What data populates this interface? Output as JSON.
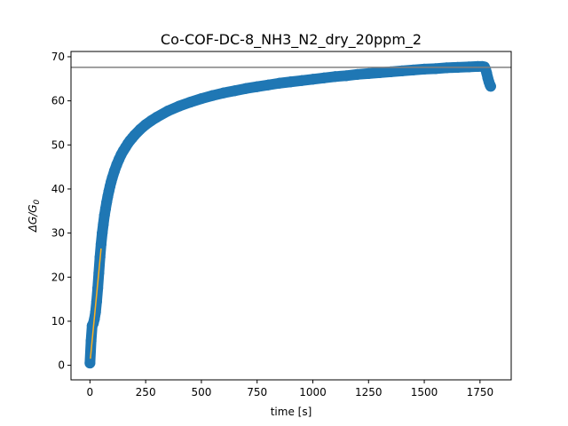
{
  "chart_data": {
    "type": "scatter",
    "title": "Co-COF-DC-8_NH3_N2_dry_20ppm_2",
    "xlabel": "time [s]",
    "ylabel": "ΔG/G",
    "ylabel_subscript": "0",
    "xlim": [
      -85,
      1890
    ],
    "ylim": [
      -3.3,
      71.2
    ],
    "xticks": [
      0,
      250,
      500,
      750,
      1000,
      1250,
      1500,
      1750
    ],
    "yticks": [
      0,
      10,
      20,
      30,
      40,
      50,
      60,
      70
    ],
    "grid": false,
    "legend": "none",
    "colors": {
      "series": "#1f77b4",
      "fit": "#ffb21f",
      "reference": "#808080"
    },
    "reference_line": {
      "y": 67.6
    },
    "fit_line": {
      "x": [
        2,
        50
      ],
      "y": [
        1.5,
        26.5
      ]
    },
    "series": [
      {
        "x": [
          0,
          5,
          10,
          15,
          20,
          25,
          30,
          35,
          40,
          45,
          50,
          55,
          60,
          65,
          70,
          75,
          80,
          85,
          90,
          95,
          100,
          110,
          120,
          130,
          140,
          150,
          160,
          170,
          180,
          190,
          200,
          225,
          250,
          275,
          300,
          350,
          400,
          450,
          500,
          550,
          600,
          650,
          700,
          750,
          800,
          850,
          900,
          950,
          1000,
          1050,
          1100,
          1150,
          1200,
          1250,
          1300,
          1350,
          1400,
          1450,
          1500,
          1550,
          1600,
          1650,
          1700,
          1740,
          1760,
          1770,
          1775,
          1780,
          1785,
          1790,
          1795,
          1798
        ],
        "y": [
          0.5,
          5.5,
          9.0,
          9.5,
          10.5,
          12.0,
          14.5,
          17.5,
          21.0,
          24.5,
          27.5,
          30.0,
          32.0,
          34.0,
          35.5,
          37.0,
          38.3,
          39.5,
          40.6,
          41.6,
          42.5,
          44.1,
          45.5,
          46.7,
          47.8,
          48.7,
          49.5,
          50.3,
          51.0,
          51.6,
          52.2,
          53.5,
          54.6,
          55.5,
          56.3,
          57.7,
          58.8,
          59.7,
          60.5,
          61.2,
          61.8,
          62.3,
          62.8,
          63.2,
          63.6,
          64.0,
          64.3,
          64.6,
          64.9,
          65.2,
          65.5,
          65.7,
          66.0,
          66.2,
          66.4,
          66.6,
          66.8,
          67.0,
          67.2,
          67.3,
          67.5,
          67.6,
          67.7,
          67.8,
          67.8,
          67.7,
          67.2,
          66.3,
          65.2,
          64.3,
          63.6,
          63.3
        ]
      }
    ]
  }
}
